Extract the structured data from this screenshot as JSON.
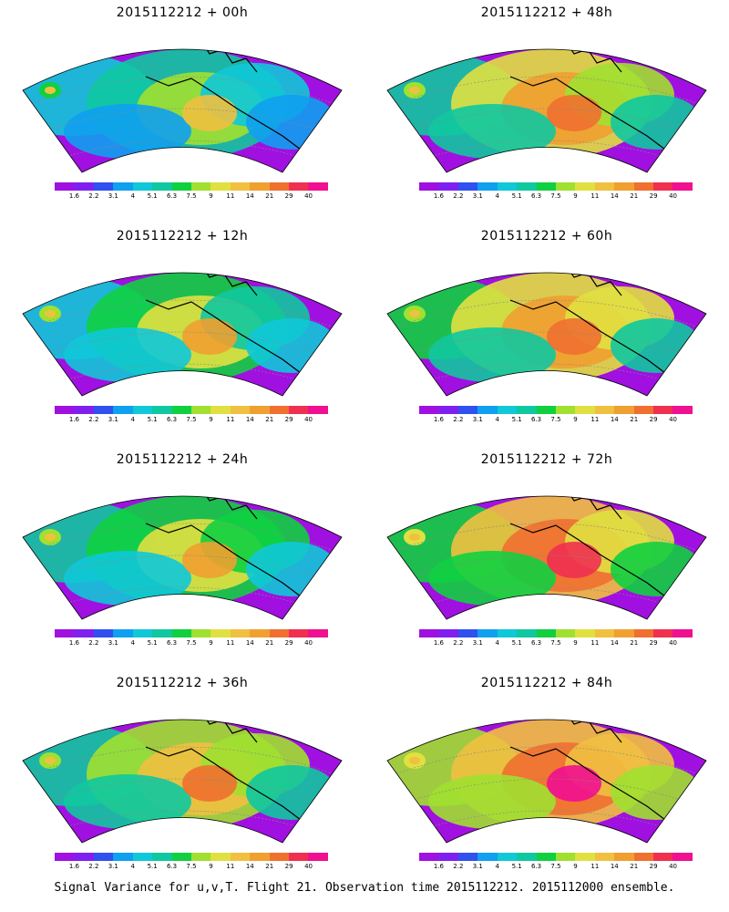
{
  "panels": [
    {
      "title": "2015112212 + 00h",
      "level": 0.15
    },
    {
      "title": "2015112212 + 48h",
      "level": 0.6
    },
    {
      "title": "2015112212 + 12h",
      "level": 0.3
    },
    {
      "title": "2015112212 + 60h",
      "level": 0.68
    },
    {
      "title": "2015112212 + 24h",
      "level": 0.4
    },
    {
      "title": "2015112212 + 72h",
      "level": 0.78
    },
    {
      "title": "2015112212 + 36h",
      "level": 0.5
    },
    {
      "title": "2015112212 + 84h",
      "level": 0.9
    }
  ],
  "colorbar": {
    "colors": [
      "#a010e0",
      "#8020f0",
      "#3050f0",
      "#10a0f0",
      "#10c8d8",
      "#10c8a0",
      "#10d040",
      "#a0e030",
      "#e0e040",
      "#f0c040",
      "#f0a030",
      "#f07030",
      "#f03050",
      "#f01090"
    ],
    "labels": [
      "1.6",
      "2.2",
      "3.1",
      "4",
      "5.1",
      "6.3",
      "7.5",
      "9",
      "11",
      "14",
      "21",
      "29",
      "40"
    ]
  },
  "footer": "Signal Variance for u,v,T. Flight 21. Observation time 2015112212. 2015112000 ensemble."
}
